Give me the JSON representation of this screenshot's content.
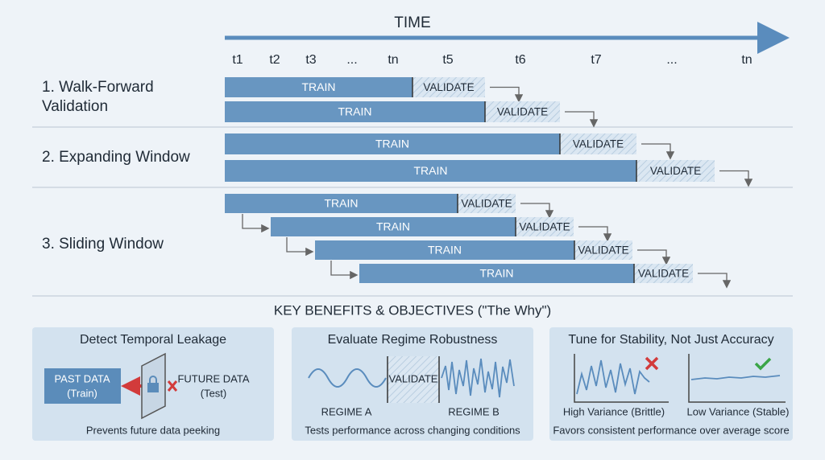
{
  "time": {
    "title": "TIME",
    "ticks": [
      "t1",
      "t2",
      "t3",
      "...",
      "tn",
      "t5",
      "t6",
      "t7",
      "...",
      "tn"
    ]
  },
  "methods": [
    {
      "label_lines": [
        "1. Walk-Forward",
        "Validation"
      ],
      "rows": [
        {
          "train": "TRAIN",
          "validate": "VALIDATE"
        },
        {
          "train": "TRAIN",
          "validate": "VALIDATE"
        }
      ]
    },
    {
      "label_lines": [
        "2. Expanding Window"
      ],
      "rows": [
        {
          "train": "TRAIN",
          "validate": "VALIDATE"
        },
        {
          "train": "TRAIN",
          "validate": "VALIDATE"
        }
      ]
    },
    {
      "label_lines": [
        "3. Sliding Window"
      ],
      "rows": [
        {
          "train": "TRAIN",
          "validate": "VALIDATE"
        },
        {
          "train": "TRAIN",
          "validate": "VALIDATE"
        },
        {
          "train": "TRAIN",
          "validate": "VALIDATE"
        },
        {
          "train": "TRAIN",
          "validate": "VALIDATE"
        }
      ]
    }
  ],
  "benefits": {
    "title": "KEY BENEFITS & OBJECTIVES (\"The Why\")",
    "cards": [
      {
        "title": "Detect Temporal Leakage",
        "labels": [
          "PAST DATA",
          "(Train)",
          "FUTURE DATA",
          "(Test)"
        ],
        "caption": "Prevents future data peeking"
      },
      {
        "title": "Evaluate Regime Robustness",
        "labels": [
          "VALIDATE",
          "REGIME A",
          "REGIME B"
        ],
        "caption": "Tests performance across changing conditions"
      },
      {
        "title": "Tune for Stability, Not Just Accuracy",
        "labels": [
          "High Variance (Brittle)",
          "Low Variance (Stable)"
        ],
        "caption": "Favors consistent performance over average score"
      }
    ]
  }
}
